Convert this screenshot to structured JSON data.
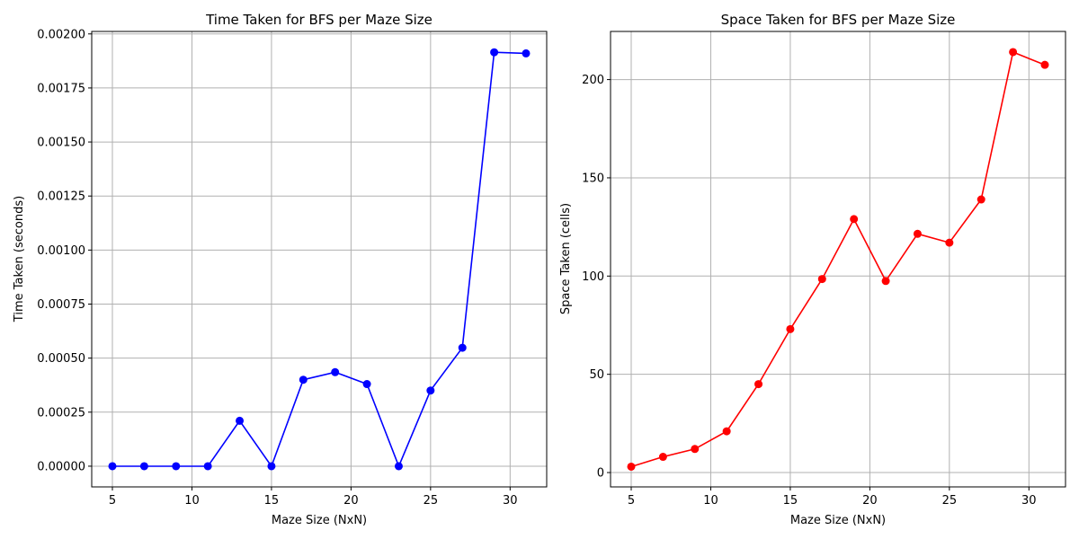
{
  "chart_data": [
    {
      "type": "line",
      "title": "Time Taken for BFS per Maze Size",
      "xlabel": "Maze Size (NxN)",
      "ylabel": "Time Taken (seconds)",
      "x": [
        5,
        7,
        9,
        11,
        13,
        15,
        17,
        19,
        21,
        23,
        25,
        27,
        29,
        31
      ],
      "series": [
        {
          "color": "#0000ff",
          "values": [
            0,
            0,
            0,
            0,
            0.00021,
            0,
            0.0004,
            0.000435,
            0.00038,
            0,
            0.00035,
            0.000548,
            0.001915,
            0.00191
          ]
        }
      ],
      "xlim": [
        3.7,
        32.3
      ],
      "ylim": [
        -9.58e-05,
        0.0020115
      ],
      "xticks": [
        5,
        10,
        15,
        20,
        25,
        30
      ],
      "xtick_labels": [
        "5",
        "10",
        "15",
        "20",
        "25",
        "30"
      ],
      "yticks": [
        0,
        0.00025,
        0.0005,
        0.00075,
        0.001,
        0.00125,
        0.0015,
        0.00175,
        0.002
      ],
      "ytick_labels": [
        "0.00000",
        "0.00025",
        "0.00050",
        "0.00075",
        "0.00100",
        "0.00125",
        "0.00150",
        "0.00175",
        "0.00200"
      ],
      "grid": true,
      "marker": "circle"
    },
    {
      "type": "line",
      "title": "Space Taken for BFS per Maze Size",
      "xlabel": "Maze Size (NxN)",
      "ylabel": "Space Taken (cells)",
      "x": [
        5,
        7,
        9,
        11,
        13,
        15,
        17,
        19,
        21,
        23,
        25,
        27,
        29,
        31
      ],
      "series": [
        {
          "color": "#ff0000",
          "values": [
            3,
            8,
            12,
            21,
            45,
            73,
            98.5,
            129,
            97.5,
            121.5,
            117,
            139,
            214,
            207.5
          ]
        }
      ],
      "xlim": [
        3.7,
        32.3
      ],
      "ylim": [
        -7.3,
        224.5
      ],
      "xticks": [
        5,
        10,
        15,
        20,
        25,
        30
      ],
      "xtick_labels": [
        "5",
        "10",
        "15",
        "20",
        "25",
        "30"
      ],
      "yticks": [
        0,
        50,
        100,
        150,
        200
      ],
      "ytick_labels": [
        "0",
        "50",
        "100",
        "150",
        "200"
      ],
      "grid": true,
      "marker": "circle"
    }
  ]
}
